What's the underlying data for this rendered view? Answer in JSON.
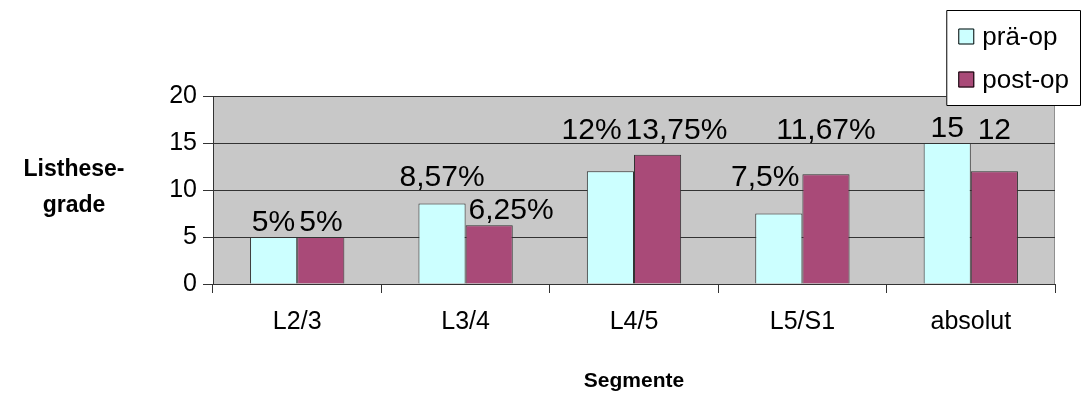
{
  "chart_data": {
    "type": "bar",
    "xlabel": "Segmente",
    "ylabel": "Listhese-grade",
    "categories": [
      "L2/3",
      "L3/4",
      "L4/5",
      "L5/S1",
      "absolut"
    ],
    "series": [
      {
        "name": "prä-op",
        "color": "#ccffff",
        "values": [
          5,
          8.57,
          12,
          7.5,
          15
        ],
        "value_labels": [
          "5%",
          "8,57%",
          "12%",
          "7,5%",
          "15"
        ]
      },
      {
        "name": "post-op",
        "color": "#a94a78",
        "values": [
          5,
          6.25,
          13.75,
          11.67,
          12
        ],
        "value_labels": [
          "5%",
          "6,25%",
          "13,75%",
          "11,67%",
          "12"
        ]
      }
    ],
    "ylim": [
      0,
      20
    ],
    "yticks": [
      0,
      5,
      10,
      15,
      20
    ],
    "grid": "y",
    "legend": "top right"
  }
}
